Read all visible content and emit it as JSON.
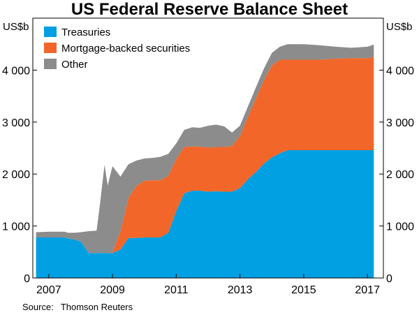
{
  "chart_data": {
    "type": "area",
    "stacked": true,
    "title": "US Federal Reserve Balance Sheet",
    "ylabel_left": "US$b",
    "ylabel_right": "US$b",
    "ylim": [
      0,
      5000
    ],
    "yticks": [
      0,
      1000,
      2000,
      3000,
      4000
    ],
    "ytick_labels": [
      "0",
      "1 000",
      "2 000",
      "3 000",
      "4 000"
    ],
    "xlim": [
      2006.5,
      2017.5
    ],
    "xticks": [
      2007,
      2009,
      2011,
      2013,
      2015,
      2017
    ],
    "xtick_labels": [
      "2007",
      "2009",
      "2011",
      "2013",
      "2015",
      "2017"
    ],
    "legend_position": "top-left",
    "x": [
      2006.6,
      2007.0,
      2007.5,
      2007.6,
      2007.8,
      2008.0,
      2008.25,
      2008.5,
      2008.6,
      2008.75,
      2008.85,
      2009.0,
      2009.25,
      2009.5,
      2009.75,
      2010.0,
      2010.25,
      2010.5,
      2010.75,
      2011.0,
      2011.25,
      2011.5,
      2011.75,
      2012.0,
      2012.25,
      2012.5,
      2012.75,
      2013.0,
      2013.25,
      2013.5,
      2013.75,
      2014.0,
      2014.25,
      2014.5,
      2014.75,
      2015.0,
      2015.5,
      2016.0,
      2016.5,
      2017.0,
      2017.2
    ],
    "series": [
      {
        "name": "Treasuries",
        "color": "#00a0e3",
        "values": [
          780,
          780,
          780,
          760,
          740,
          700,
          480,
          480,
          480,
          480,
          480,
          480,
          550,
          770,
          770,
          780,
          780,
          780,
          870,
          1290,
          1630,
          1680,
          1680,
          1660,
          1670,
          1660,
          1660,
          1730,
          1900,
          2040,
          2200,
          2320,
          2400,
          2460,
          2460,
          2460,
          2460,
          2460,
          2460,
          2460,
          2460
        ]
      },
      {
        "name": "Mortgage-backed securities",
        "color": "#f26729",
        "values": [
          0,
          0,
          0,
          0,
          0,
          0,
          0,
          0,
          0,
          0,
          0,
          20,
          350,
          770,
          1000,
          1090,
          1100,
          1100,
          1100,
          1000,
          890,
          850,
          850,
          850,
          850,
          860,
          880,
          1000,
          1200,
          1420,
          1600,
          1770,
          1800,
          1740,
          1740,
          1740,
          1740,
          1760,
          1770,
          1770,
          1790
        ]
      },
      {
        "name": "Other",
        "color": "#8c8c8c",
        "values": [
          100,
          110,
          110,
          110,
          130,
          180,
          420,
          430,
          900,
          1700,
          1300,
          1650,
          1050,
          650,
          490,
          430,
          430,
          450,
          420,
          300,
          330,
          370,
          360,
          420,
          430,
          400,
          260,
          200,
          200,
          210,
          230,
          240,
          250,
          300,
          300,
          300,
          280,
          230,
          200,
          220,
          240
        ]
      }
    ],
    "source_label": "Source:",
    "source_name": "Thomson Reuters"
  }
}
